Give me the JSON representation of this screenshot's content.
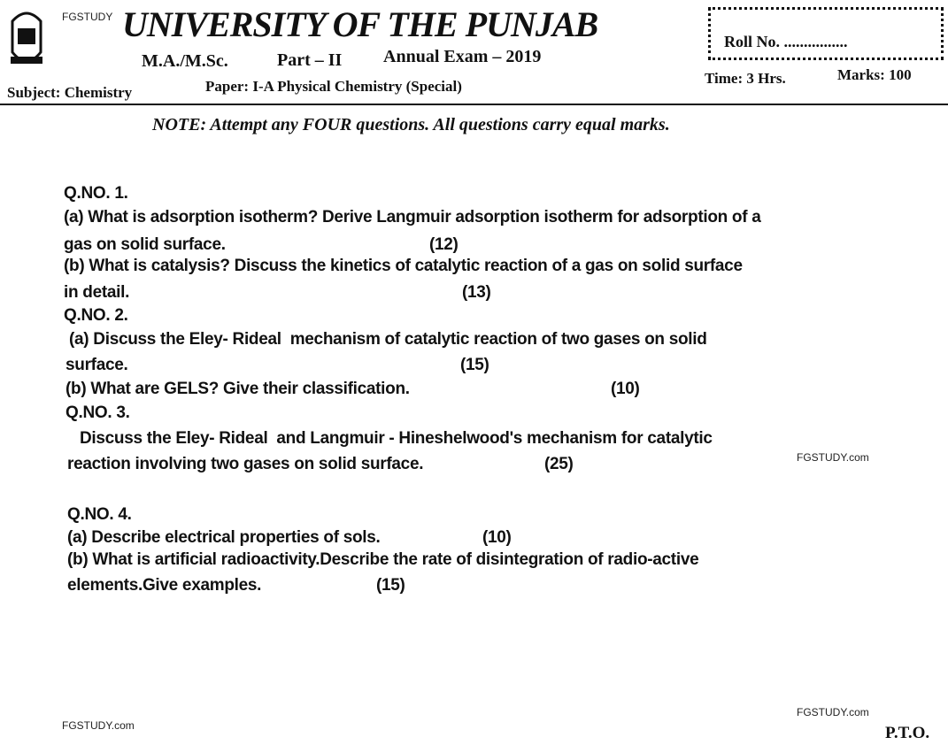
{
  "header": {
    "watermark": "FGSTUDY",
    "university": "UNIVERSITY OF THE PUNJAB",
    "degree": "M.A./M.Sc.",
    "part": "Part – II",
    "exam": "Annual Exam – 2019",
    "subject": "Subject: Chemistry",
    "paper": "Paper: I-A Physical Chemistry (Special)",
    "roll": "Roll No. ................",
    "time": "Time: 3 Hrs.",
    "marks": "Marks: 100"
  },
  "note": "NOTE: Attempt any FOUR questions. All questions carry equal marks.",
  "lines": [
    {
      "text": "Q.NO. 1."
    },
    {
      "text": "(a) What is adsorption isotherm? Derive Langmuir adsorption isotherm for adsorption of a"
    },
    {
      "text": "gas on solid surface.",
      "marks": "(12)"
    },
    {
      "text": "(b) What is catalysis? Discuss the kinetics of catalytic reaction of a gas on solid surface"
    },
    {
      "text": "in detail.",
      "marks": "(13)"
    },
    {
      "text": "Q.NO. 2."
    },
    {
      "text": "(a) Discuss the Eley- Rideal  mechanism of catalytic reaction of two gases on solid"
    },
    {
      "text": "surface.",
      "marks": "(15)"
    },
    {
      "text": "(b) What are GELS? Give their classification.",
      "marks": "(10)"
    },
    {
      "text": "Q.NO. 3."
    },
    {
      "text": "Discuss the Eley- Rideal  and Langmuir - Hineshelwood's mechanism for catalytic"
    },
    {
      "text": "reaction involving two gases on solid surface.",
      "marks": "(25)"
    },
    {
      "text": "Q.NO. 4."
    },
    {
      "text": "(a) Describe electrical properties of sols.",
      "marks": "(10)"
    },
    {
      "text": "(b) What is artificial radioactivity.Describe the rate of disintegration of radio-active"
    },
    {
      "text": "elements.Give examples.",
      "marks": "(15)"
    }
  ],
  "footer": {
    "watermark_mid": "FGSTUDY.com",
    "watermark_left": "FGSTUDY.com",
    "watermark_right": "FGSTUDY.com",
    "pto": "P.T.O."
  }
}
